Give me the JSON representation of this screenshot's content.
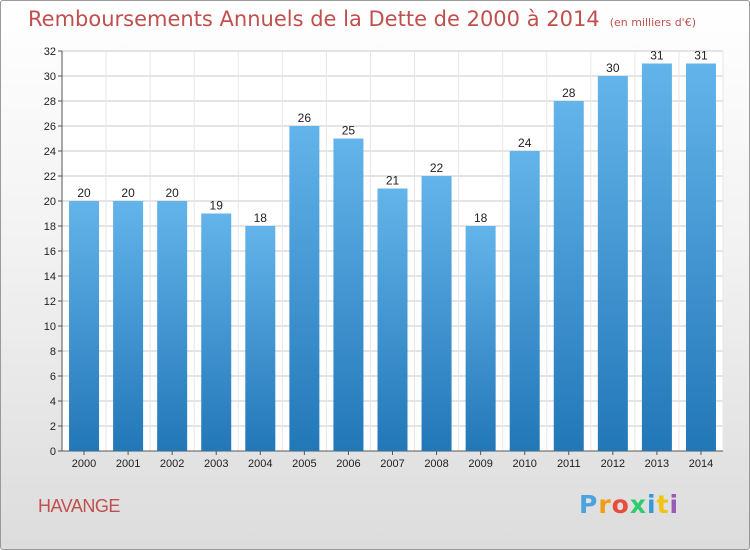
{
  "title": "Remboursements Annuels de la Dette de 2000 à 2014",
  "title_unit": "(en milliers d'€)",
  "commune": "HAVANGE",
  "logo": {
    "text": "Proxiti",
    "letters": [
      "P",
      "r",
      "o",
      "x",
      "i",
      "t",
      "i"
    ],
    "colors": [
      "#4aa3df",
      "#f39c12",
      "#e74c3c",
      "#2ecc71",
      "#3498db",
      "#f1c40f",
      "#9b59b6"
    ]
  },
  "colors": {
    "bar_top": "#63b4ea",
    "bar_bottom": "#2277b7",
    "title": "#c0504d",
    "grid": "#c8c8c8"
  },
  "chart_data": {
    "type": "bar",
    "title": "Remboursements Annuels de la Dette de 2000 à 2014",
    "xlabel": "",
    "ylabel": "",
    "categories": [
      "2000",
      "2001",
      "2002",
      "2003",
      "2004",
      "2005",
      "2006",
      "2007",
      "2008",
      "2009",
      "2010",
      "2011",
      "2012",
      "2013",
      "2014"
    ],
    "values": [
      20,
      20,
      20,
      19,
      18,
      26,
      25,
      21,
      22,
      18,
      24,
      28,
      30,
      31,
      31
    ],
    "ylim": [
      0,
      32
    ],
    "yticks": [
      0,
      2,
      4,
      6,
      8,
      10,
      12,
      14,
      16,
      18,
      20,
      22,
      24,
      26,
      28,
      30,
      32
    ],
    "grid": true
  }
}
